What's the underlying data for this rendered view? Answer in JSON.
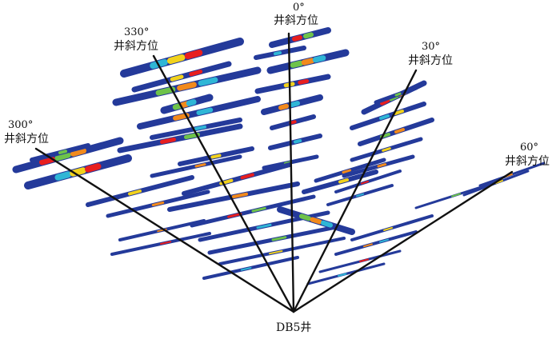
{
  "well": {
    "label": "DB5井"
  },
  "azimuths": [
    {
      "deg": "300°",
      "text": "井斜方位"
    },
    {
      "deg": "330°",
      "text": "井斜方位"
    },
    {
      "deg": "0°",
      "text": "井斜方位"
    },
    {
      "deg": "30°",
      "text": "井斜方位"
    },
    {
      "deg": "60°",
      "text": "井斜方位"
    }
  ],
  "colors": {
    "base": "#243a9a",
    "cyan": "#2fb6d6",
    "green": "#6ec34a",
    "yellow": "#f2d21c",
    "orange": "#f28a1c",
    "red": "#e81e1e",
    "line": "#111111"
  }
}
